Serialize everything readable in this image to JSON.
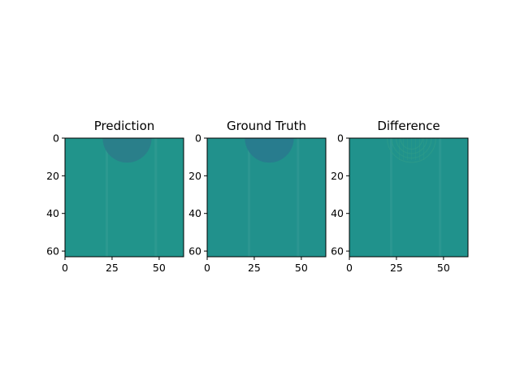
{
  "chart_data": [
    {
      "type": "heatmap",
      "title": "Prediction",
      "xlabel": "",
      "ylabel": "",
      "xlim": [
        0,
        63
      ],
      "ylim": [
        63,
        0
      ],
      "xticks": [
        0,
        25,
        50
      ],
      "yticks": [
        0,
        20,
        40,
        60
      ],
      "colormap": "viridis",
      "background_color": "#21948b",
      "feature": {
        "shape": "half-disk",
        "center_x": 33,
        "center_y": 0,
        "radius": 13,
        "color": "#2a7f8a"
      }
    },
    {
      "type": "heatmap",
      "title": "Ground Truth",
      "xlabel": "",
      "ylabel": "",
      "xlim": [
        0,
        63
      ],
      "ylim": [
        63,
        0
      ],
      "xticks": [
        0,
        25,
        50
      ],
      "yticks": [
        0,
        20,
        40,
        60
      ],
      "colormap": "viridis",
      "background_color": "#21918c",
      "feature": {
        "shape": "half-disk",
        "center_x": 33,
        "center_y": 0,
        "radius": 13,
        "color": "#287c8e"
      }
    },
    {
      "type": "heatmap",
      "title": "Difference",
      "xlabel": "",
      "ylabel": "",
      "xlim": [
        0,
        63
      ],
      "ylim": [
        63,
        0
      ],
      "xticks": [
        0,
        25,
        50
      ],
      "yticks": [
        0,
        20,
        40,
        60
      ],
      "colormap": "viridis",
      "background_color": "#20928c",
      "feature": {
        "shape": "ripples",
        "center_x": 33,
        "center_y": 0,
        "radius": 13,
        "color": "#2e9b89"
      }
    }
  ]
}
